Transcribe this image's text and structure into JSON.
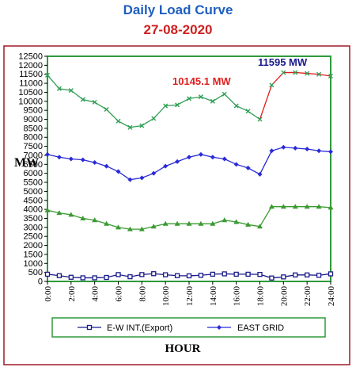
{
  "header": {
    "title": "Daily Load Curve",
    "date": "27-08-2020"
  },
  "chart_data": {
    "type": "line",
    "xlabel": "HOUR",
    "ylabel": "MW",
    "ylim": [
      0,
      12500
    ],
    "ytick_step": 500,
    "xlim": [
      0,
      24
    ],
    "x_tick_labels": [
      "0:00",
      "2:00",
      "4:00",
      "6:00",
      "8:00",
      "10:00",
      "12:00",
      "14:00",
      "16:00",
      "18:00",
      "20:00",
      "22:00",
      "24:00"
    ],
    "legend_position": "bottom",
    "annotations": [
      {
        "text": "10145.1 MW",
        "color": "#e01e1e"
      },
      {
        "text": "11595 MW",
        "color": "#1a1a8c"
      }
    ],
    "series": [
      {
        "name": "E-W INT.(Export)",
        "color": "#1a1a8c",
        "marker": "square-open",
        "x": [
          0,
          1,
          2,
          3,
          4,
          5,
          6,
          7,
          8,
          9,
          10,
          11,
          12,
          13,
          14,
          15,
          16,
          17,
          18,
          19,
          20,
          21,
          22,
          23,
          24
        ],
        "values": [
          400,
          320,
          230,
          200,
          200,
          220,
          380,
          260,
          380,
          430,
          370,
          320,
          310,
          340,
          400,
          420,
          400,
          400,
          390,
          190,
          250,
          360,
          360,
          340,
          420
        ]
      },
      {
        "name": "EAST GRID",
        "color": "#2a2ad8",
        "marker": "diamond",
        "x": [
          0,
          1,
          2,
          3,
          4,
          5,
          6,
          7,
          8,
          9,
          10,
          11,
          12,
          13,
          14,
          15,
          16,
          17,
          18,
          19,
          20,
          21,
          22,
          23,
          24
        ],
        "values": [
          7050,
          6900,
          6800,
          6750,
          6600,
          6400,
          6100,
          5650,
          5750,
          6000,
          6400,
          6650,
          6900,
          7050,
          6900,
          6800,
          6500,
          6300,
          5950,
          7250,
          7450,
          7400,
          7350,
          7250,
          7200
        ]
      },
      {
        "name": "",
        "color": "#3b9a32",
        "marker": "triangle",
        "x": [
          0,
          1,
          2,
          3,
          4,
          5,
          6,
          7,
          8,
          9,
          10,
          11,
          12,
          13,
          14,
          15,
          16,
          17,
          18,
          19,
          20,
          21,
          22,
          23,
          24
        ],
        "values": [
          3950,
          3800,
          3700,
          3500,
          3400,
          3200,
          3000,
          2900,
          2900,
          3050,
          3200,
          3200,
          3200,
          3200,
          3200,
          3400,
          3300,
          3150,
          3050,
          4150,
          4150,
          4150,
          4150,
          4150,
          4100
        ]
      },
      {
        "name": "",
        "color": "#2e9e55",
        "marker": "x",
        "x": [
          0,
          1,
          2,
          3,
          4,
          5,
          6,
          7,
          8,
          9,
          10,
          11,
          12,
          13,
          14,
          15,
          16,
          17,
          18,
          19,
          20,
          21,
          22,
          23,
          24
        ],
        "values": [
          11450,
          10700,
          10600,
          10100,
          9950,
          9550,
          8900,
          8550,
          8650,
          9050,
          9750,
          9800,
          10150,
          10250,
          10000,
          10400,
          9750,
          9450,
          9000,
          10900,
          11595,
          11600,
          11550,
          11500,
          11400
        ]
      }
    ]
  }
}
